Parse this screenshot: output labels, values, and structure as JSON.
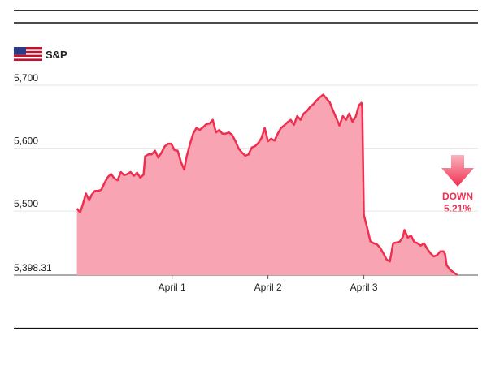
{
  "chart_data": {
    "type": "area",
    "title": "S&P",
    "x": [
      0.008,
      0.042,
      0.068,
      0.102,
      0.136,
      0.161,
      0.195,
      0.229,
      0.263,
      0.297,
      0.331,
      0.364,
      0.398,
      0.432,
      0.466,
      0.5,
      0.534,
      0.568,
      0.602,
      0.636,
      0.669,
      0.703,
      0.72,
      0.754,
      0.788,
      0.822,
      0.856,
      0.89,
      0.924,
      0.958,
      0.992,
      1.025,
      1.059,
      1.093,
      1.127,
      1.153,
      1.186,
      1.22,
      1.254,
      1.288,
      1.322,
      1.356,
      1.39,
      1.424,
      1.458,
      1.492,
      1.525,
      1.559,
      1.593,
      1.627,
      1.661,
      1.695,
      1.729,
      1.763,
      1.797,
      1.831,
      1.864,
      1.898,
      1.932,
      1.966,
      2,
      2.034,
      2.068,
      2.102,
      2.136,
      2.169,
      2.203,
      2.237,
      2.271,
      2.305,
      2.339,
      2.373,
      2.407,
      2.441,
      2.475,
      2.508,
      2.542,
      2.576,
      2.61,
      2.644,
      2.678,
      2.712,
      2.746,
      2.78,
      2.814,
      2.847,
      2.881,
      2.915,
      2.949,
      2.975,
      2.983,
      3,
      3.034,
      3.068,
      3.102,
      3.136,
      3.169,
      3.203,
      3.237,
      3.271,
      3.305,
      3.339,
      3.373,
      3.407,
      3.424,
      3.458,
      3.492,
      3.525,
      3.559,
      3.593,
      3.627,
      3.661,
      3.695,
      3.729,
      3.763,
      3.797,
      3.831,
      3.847,
      3.864,
      3.898,
      3.932,
      3.975
    ],
    "values": [
      5504,
      5498,
      5510,
      5528,
      5517,
      5526,
      5532,
      5532,
      5534,
      5545,
      5554,
      5559,
      5552,
      5549,
      5562,
      5557,
      5559,
      5562,
      5556,
      5561,
      5553,
      5558,
      5587,
      5590,
      5590,
      5596,
      5585,
      5593,
      5603,
      5607,
      5607,
      5597,
      5596,
      5578,
      5566,
      5587,
      5606,
      5623,
      5632,
      5629,
      5633,
      5638,
      5639,
      5645,
      5625,
      5629,
      5623,
      5623,
      5625,
      5621,
      5611,
      5599,
      5593,
      5588,
      5590,
      5601,
      5603,
      5608,
      5616,
      5632,
      5611,
      5615,
      5612,
      5623,
      5632,
      5636,
      5641,
      5645,
      5637,
      5651,
      5645,
      5655,
      5659,
      5666,
      5670,
      5676,
      5681,
      5685,
      5679,
      5673,
      5660,
      5648,
      5636,
      5651,
      5645,
      5655,
      5642,
      5650,
      5668,
      5672,
      5665,
      5494,
      5474,
      5452,
      5449,
      5447,
      5442,
      5433,
      5423,
      5420,
      5449,
      5450,
      5451,
      5459,
      5470,
      5458,
      5461,
      5451,
      5449,
      5445,
      5449,
      5440,
      5433,
      5428,
      5430,
      5436,
      5436,
      5432,
      5414,
      5407,
      5403,
      5398.31
    ],
    "color": "#ef2f4f",
    "fill_color": "#f8a4b3",
    "xlim": [
      -0.65,
      4.19
    ],
    "xticks": [
      {
        "value": 1,
        "label": "April 1"
      },
      {
        "value": 2,
        "label": "April 2"
      },
      {
        "value": 3,
        "label": "April 3"
      }
    ],
    "ylim": [
      5398.31,
      5700
    ],
    "yticks": [
      {
        "value": 5398.31,
        "label": "5,398.31"
      },
      {
        "value": 5500,
        "label": "5,500"
      },
      {
        "value": 5600,
        "label": "5,600"
      },
      {
        "value": 5700,
        "label": "5,700"
      }
    ],
    "grid": true,
    "annotation": [
      "DOWN",
      "5.21%"
    ]
  }
}
